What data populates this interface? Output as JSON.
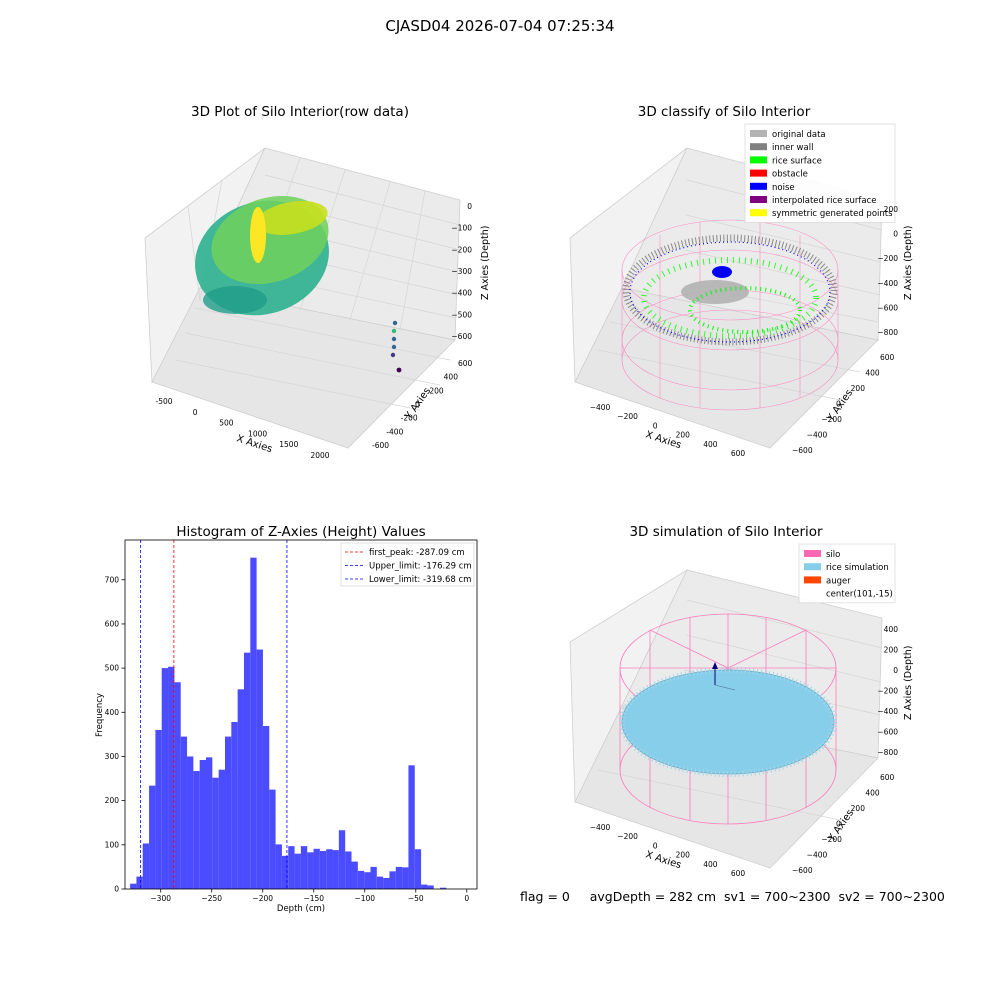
{
  "figure": {
    "suptitle": "CJASD04 2026-07-04 07:25:34",
    "footer": {
      "flag": "flag = 0",
      "avg_depth": "avgDepth = 282 cm",
      "sv1": "sv1 = 700~2300",
      "sv2": "sv2 = 700~2300"
    }
  },
  "colors": {
    "original_data": "#b3b3b3",
    "inner_wall": "#808080",
    "rice_surface": "#00ff00",
    "obstacle": "#ff0000",
    "noise": "#0000ff",
    "interpolated_rice_surface": "#800080",
    "symmetric_generated_points": "#ffff00",
    "silo": "#ff69b4",
    "rice_simulation": "#87ceeb",
    "auger": "#ff4500",
    "histogram_bar": "#4b4bff",
    "first_peak_line": "#ff0000",
    "limit_line": "#0000ff"
  },
  "chart_data": [
    {
      "type": "scatter",
      "title": "3D Plot of Silo Interior(row data)",
      "xlabel": "X Axies",
      "ylabel": "Y Axies",
      "zlabel": "Z Axies (Depth)",
      "x_ticks": [
        "-500",
        "0",
        "500",
        "1000",
        "1500",
        "2000"
      ],
      "y_ticks": [
        "-600",
        "-400",
        "-200",
        "0",
        "200",
        "400",
        "600"
      ],
      "z_ticks": [
        "0",
        "−100",
        "−200",
        "−300",
        "−400",
        "−500",
        "−600"
      ]
    },
    {
      "type": "scatter",
      "title": "3D classify of Silo Interior",
      "xlabel": "X Axies",
      "ylabel": "Y Axies",
      "zlabel": "Z Axies (Depth)",
      "x_ticks": [
        "−400",
        "−200",
        "0",
        "200",
        "400",
        "600"
      ],
      "y_ticks": [
        "−600",
        "−400",
        "−200",
        "0",
        "200",
        "400",
        "600"
      ],
      "z_ticks": [
        "200",
        "0",
        "−200",
        "−400",
        "−600",
        "−800"
      ],
      "legend_position": "top-right",
      "legend": [
        "original data",
        "inner wall",
        "rice surface",
        "obstacle",
        "noise",
        "interpolated rice surface",
        "symmetric generated points"
      ]
    },
    {
      "type": "bar",
      "title": "Histogram of Z-Axies (Height) Values",
      "xlabel": "Depth (cm)",
      "ylabel": "Frequency",
      "xlim": [
        -335,
        10
      ],
      "ylim": [
        0,
        790
      ],
      "x_ticks": [
        -300,
        -250,
        -200,
        -150,
        -100,
        -50,
        0
      ],
      "x_tick_labels": [
        "−300",
        "−250",
        "−200",
        "−150",
        "−100",
        "−50",
        "0"
      ],
      "y_ticks": [
        0,
        100,
        200,
        300,
        400,
        500,
        600,
        700
      ],
      "y_tick_labels": [
        "0",
        "100",
        "200",
        "300",
        "400",
        "500",
        "600",
        "700"
      ],
      "bin_start": -330,
      "bin_width": 6.2,
      "values": [
        12,
        28,
        103,
        234,
        360,
        500,
        503,
        468,
        345,
        300,
        267,
        292,
        298,
        252,
        270,
        345,
        378,
        452,
        535,
        750,
        542,
        369,
        225,
        101,
        75,
        97,
        80,
        97,
        83,
        91,
        86,
        90,
        88,
        133,
        85,
        62,
        41,
        38,
        50,
        28,
        25,
        40,
        50,
        49,
        280,
        90,
        10,
        8,
        0,
        3,
        0
      ],
      "legend_position": "top-right",
      "lines": [
        {
          "label": "first_peak: -287.09 cm",
          "x": -287.09,
          "color": "#ff0000"
        },
        {
          "label": "Upper_limit: -176.29 cm",
          "x": -176.29,
          "color": "#0000ff"
        },
        {
          "label": "Lower_limit: -319.68 cm",
          "x": -319.68,
          "color": "#0000ff"
        }
      ]
    },
    {
      "type": "scatter",
      "title": "3D simulation of Silo Interior",
      "xlabel": "X Axies",
      "ylabel": "Y Axies",
      "zlabel": "Z Axies (Depth)",
      "x_ticks": [
        "−400",
        "−200",
        "0",
        "200",
        "400",
        "600"
      ],
      "y_ticks": [
        "−600",
        "−400",
        "−200",
        "0",
        "200",
        "400",
        "600"
      ],
      "z_ticks": [
        "400",
        "200",
        "0",
        "−200",
        "−400",
        "−600",
        "−800"
      ],
      "legend_position": "top-right",
      "legend": [
        "silo",
        "rice simulation",
        "auger",
        "center(101,-15)"
      ]
    }
  ]
}
